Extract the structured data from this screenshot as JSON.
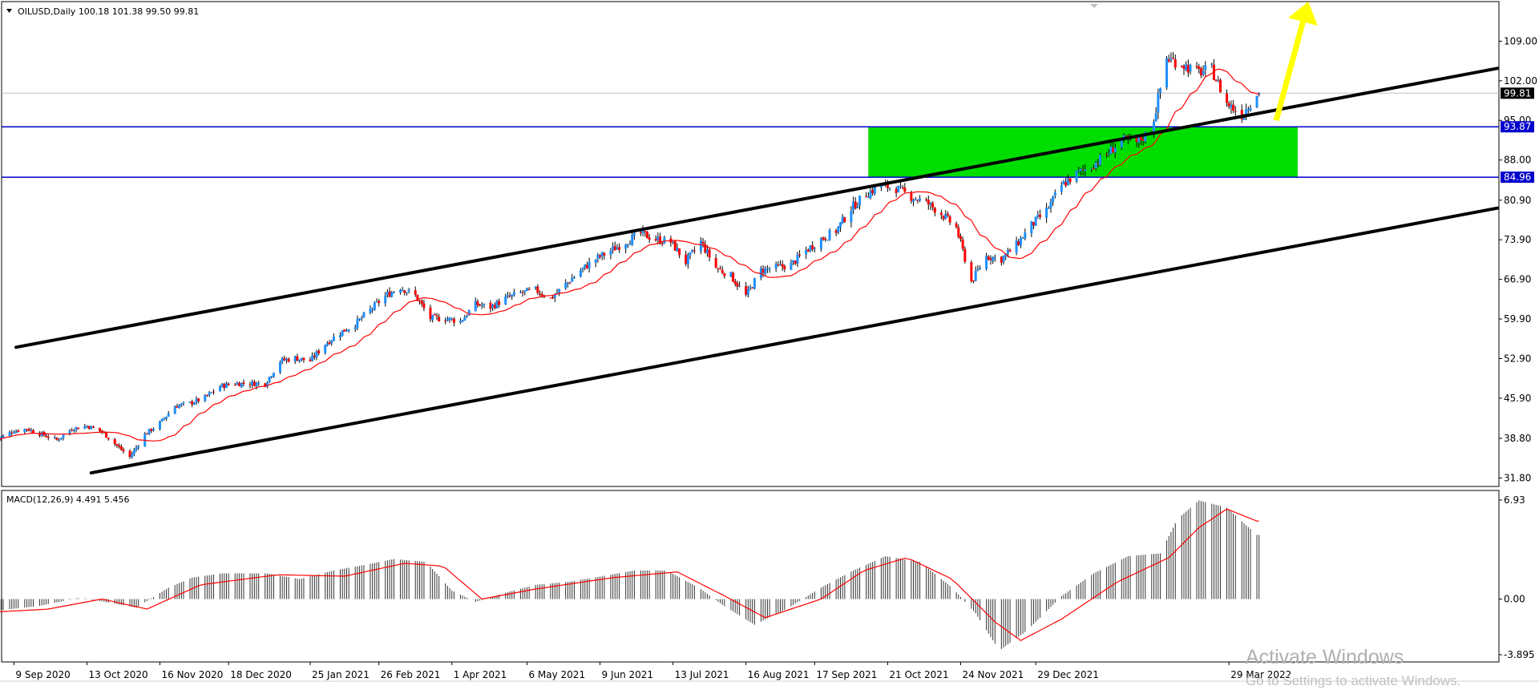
{
  "header": {
    "symbol_line": "OILUSD,Daily  100.18 101.38 99.50 99.81",
    "macd_line": "MACD(12,26,9) 4.491 5.456"
  },
  "watermark": {
    "title": "Activate Windows",
    "subtitle": "Go to Settings to activate Windows."
  },
  "chart_data": [
    {
      "type": "candlestick",
      "instrument": "OILUSD",
      "timeframe": "Daily",
      "last_ohlc": {
        "open": 100.18,
        "high": 101.38,
        "low": 99.5,
        "close": 99.81
      },
      "y_tick_labels": [
        "109.00",
        "102.00",
        "95.00",
        "88.00",
        "80.90",
        "73.90",
        "66.90",
        "59.90",
        "52.90",
        "45.90",
        "38.80",
        "31.80"
      ],
      "y_ticks": [
        109.0,
        102.0,
        95.0,
        88.0,
        80.9,
        73.9,
        66.9,
        59.9,
        52.9,
        45.9,
        38.8,
        31.8
      ],
      "ylim": [
        30.3,
        116.0
      ],
      "x_tick_labels": [
        "9 Sep 2020",
        "13 Oct 2020",
        "16 Nov 2020",
        "18 Dec 2020",
        "25 Jan 2021",
        "26 Feb 2021",
        "1 Apr 2021",
        "6 May 2021",
        "9 Jun 2021",
        "13 Jul 2021",
        "16 Aug 2021",
        "17 Sep 2021",
        "21 Oct 2021",
        "24 Nov 2021",
        "29 Dec 2021",
        "29 Mar 2022"
      ],
      "x_tick_dates": [
        "2020-09-09",
        "2020-10-13",
        "2020-11-16",
        "2020-12-18",
        "2021-01-25",
        "2021-02-26",
        "2021-04-01",
        "2021-05-06",
        "2021-06-09",
        "2021-07-13",
        "2021-08-16",
        "2021-09-17",
        "2021-10-21",
        "2021-11-24",
        "2021-12-29",
        "2022-03-29"
      ],
      "close_path": [
        [
          "2020-09-01",
          38.5
        ],
        [
          "2020-09-08",
          40.0
        ],
        [
          "2020-09-15",
          40.5
        ],
        [
          "2020-09-22",
          39.5
        ],
        [
          "2020-09-29",
          38.5
        ],
        [
          "2020-10-06",
          40.5
        ],
        [
          "2020-10-13",
          41.0
        ],
        [
          "2020-10-20",
          40.0
        ],
        [
          "2020-10-27",
          37.5
        ],
        [
          "2020-11-02",
          35.5
        ],
        [
          "2020-11-09",
          39.5
        ],
        [
          "2020-11-16",
          41.5
        ],
        [
          "2020-11-23",
          44.5
        ],
        [
          "2020-11-30",
          45.0
        ],
        [
          "2020-12-07",
          46.0
        ],
        [
          "2020-12-14",
          48.0
        ],
        [
          "2020-12-21",
          48.5
        ],
        [
          "2020-12-28",
          48.5
        ],
        [
          "2021-01-04",
          48.5
        ],
        [
          "2021-01-11",
          52.5
        ],
        [
          "2021-01-18",
          53.0
        ],
        [
          "2021-01-25",
          52.5
        ],
        [
          "2021-02-01",
          55.5
        ],
        [
          "2021-02-08",
          57.5
        ],
        [
          "2021-02-15",
          59.0
        ],
        [
          "2021-02-22",
          61.5
        ],
        [
          "2021-03-01",
          64.0
        ],
        [
          "2021-03-08",
          65.5
        ],
        [
          "2021-03-15",
          64.0
        ],
        [
          "2021-03-22",
          60.0
        ],
        [
          "2021-03-29",
          60.0
        ],
        [
          "2021-04-05",
          59.5
        ],
        [
          "2021-04-12",
          62.5
        ],
        [
          "2021-04-19",
          62.0
        ],
        [
          "2021-04-26",
          63.5
        ],
        [
          "2021-05-03",
          64.5
        ],
        [
          "2021-05-10",
          65.0
        ],
        [
          "2021-05-17",
          63.5
        ],
        [
          "2021-05-24",
          66.0
        ],
        [
          "2021-05-31",
          68.5
        ],
        [
          "2021-06-07",
          70.5
        ],
        [
          "2021-06-14",
          72.0
        ],
        [
          "2021-06-21",
          73.5
        ],
        [
          "2021-06-28",
          75.0
        ],
        [
          "2021-07-05",
          74.0
        ],
        [
          "2021-07-12",
          73.5
        ],
        [
          "2021-07-19",
          70.0
        ],
        [
          "2021-07-26",
          73.5
        ],
        [
          "2021-08-02",
          69.0
        ],
        [
          "2021-08-09",
          67.5
        ],
        [
          "2021-08-16",
          64.0
        ],
        [
          "2021-08-23",
          68.5
        ],
        [
          "2021-08-30",
          69.0
        ],
        [
          "2021-09-06",
          69.5
        ],
        [
          "2021-09-13",
          72.0
        ],
        [
          "2021-09-20",
          74.0
        ],
        [
          "2021-09-27",
          75.5
        ],
        [
          "2021-10-04",
          79.5
        ],
        [
          "2021-10-11",
          82.0
        ],
        [
          "2021-10-18",
          83.5
        ],
        [
          "2021-10-25",
          83.0
        ],
        [
          "2021-11-01",
          81.5
        ],
        [
          "2021-11-08",
          80.5
        ],
        [
          "2021-11-15",
          78.5
        ],
        [
          "2021-11-22",
          76.0
        ],
        [
          "2021-11-29",
          66.5
        ],
        [
          "2021-12-06",
          71.0
        ],
        [
          "2021-12-13",
          70.5
        ],
        [
          "2021-12-20",
          73.0
        ],
        [
          "2021-12-27",
          76.5
        ],
        [
          "2022-01-03",
          79.0
        ],
        [
          "2022-01-10",
          83.5
        ],
        [
          "2022-01-17",
          85.5
        ],
        [
          "2022-01-24",
          87.0
        ],
        [
          "2022-01-31",
          89.0
        ],
        [
          "2022-02-07",
          91.5
        ],
        [
          "2022-02-14",
          91.0
        ],
        [
          "2022-02-21",
          93.5
        ],
        [
          "2022-02-28",
          106.0
        ],
        [
          "2022-03-07",
          105.0
        ],
        [
          "2022-03-14",
          103.5
        ],
        [
          "2022-03-21",
          104.0
        ],
        [
          "2022-03-28",
          98.0
        ],
        [
          "2022-04-04",
          96.0
        ],
        [
          "2022-04-11",
          99.81
        ]
      ],
      "indicator": {
        "name": "moving average",
        "color": "#ff0000"
      },
      "price_labels": [
        {
          "label": "99.81",
          "value": 99.81,
          "kind": "current price",
          "bg": "#000000"
        },
        {
          "label": "93.87",
          "value": 93.87,
          "kind": "horizontal line",
          "bg": "#0000cc"
        },
        {
          "label": "84.96",
          "value": 84.96,
          "kind": "horizontal line",
          "bg": "#0000cc"
        }
      ],
      "horizontal_lines": [
        93.87,
        84.96
      ],
      "trend_channel": {
        "upper": [
          [
            "2020-09-10",
            54.9
          ],
          [
            "2022-08-01",
            104.2
          ]
        ],
        "lower": [
          [
            "2020-10-15",
            32.7
          ],
          [
            "2022-08-01",
            79.5
          ]
        ]
      },
      "zone": {
        "from": "2021-10-12",
        "to": "2022-04-30",
        "low": 84.96,
        "high": 93.87,
        "color": "#00dd00"
      },
      "arrow": {
        "from": [
          "2022-04-20",
          95.0
        ],
        "to": [
          "2022-05-05",
          116.0
        ],
        "color": "#ffff00"
      },
      "colors": {
        "up": "#1e90ff",
        "down": "#ff0000",
        "wick": "#000000",
        "trendline": "#000000"
      }
    },
    {
      "type": "histogram",
      "name": "MACD(12,26,9)",
      "main": 4.491,
      "signal": 5.456,
      "y_tick_labels": [
        "6.93",
        "0.00",
        "-3.895"
      ],
      "y_ticks": [
        6.93,
        0.0,
        -3.895
      ],
      "ylim": [
        -4.4,
        7.6
      ],
      "macd_path": [
        [
          "2020-09-01",
          -0.8
        ],
        [
          "2020-09-20",
          -0.5
        ],
        [
          "2020-10-10",
          0.1
        ],
        [
          "2020-10-25",
          -0.3
        ],
        [
          "2020-11-05",
          -0.6
        ],
        [
          "2020-11-20",
          0.8
        ],
        [
          "2020-12-01",
          1.5
        ],
        [
          "2020-12-15",
          1.8
        ],
        [
          "2021-01-05",
          1.8
        ],
        [
          "2021-01-20",
          1.4
        ],
        [
          "2021-02-05",
          2.0
        ],
        [
          "2021-02-20",
          2.4
        ],
        [
          "2021-03-05",
          2.8
        ],
        [
          "2021-03-20",
          2.6
        ],
        [
          "2021-04-01",
          0.6
        ],
        [
          "2021-04-12",
          -0.2
        ],
        [
          "2021-04-25",
          0.4
        ],
        [
          "2021-05-10",
          1.0
        ],
        [
          "2021-05-25",
          1.2
        ],
        [
          "2021-06-10",
          1.6
        ],
        [
          "2021-06-25",
          2.0
        ],
        [
          "2021-07-10",
          2.0
        ],
        [
          "2021-07-25",
          0.8
        ],
        [
          "2021-08-05",
          -0.4
        ],
        [
          "2021-08-20",
          -1.8
        ],
        [
          "2021-09-05",
          -0.6
        ],
        [
          "2021-09-20",
          0.8
        ],
        [
          "2021-10-05",
          2.0
        ],
        [
          "2021-10-20",
          3.0
        ],
        [
          "2021-11-05",
          2.6
        ],
        [
          "2021-11-20",
          0.8
        ],
        [
          "2021-12-01",
          -1.0
        ],
        [
          "2021-12-12",
          -3.6
        ],
        [
          "2021-12-25",
          -2.2
        ],
        [
          "2022-01-10",
          0.2
        ],
        [
          "2022-01-25",
          1.8
        ],
        [
          "2022-02-10",
          3.0
        ],
        [
          "2022-02-25",
          3.2
        ],
        [
          "2022-03-05",
          5.6
        ],
        [
          "2022-03-15",
          6.9
        ],
        [
          "2022-03-28",
          6.4
        ],
        [
          "2022-04-11",
          4.491
        ]
      ],
      "signal_path": [
        [
          "2020-09-01",
          -0.9
        ],
        [
          "2020-09-25",
          -0.7
        ],
        [
          "2020-10-20",
          0.0
        ],
        [
          "2020-11-10",
          -0.7
        ],
        [
          "2020-12-05",
          1.0
        ],
        [
          "2021-01-10",
          1.7
        ],
        [
          "2021-02-10",
          1.6
        ],
        [
          "2021-03-10",
          2.5
        ],
        [
          "2021-03-28",
          2.3
        ],
        [
          "2021-04-15",
          0.0
        ],
        [
          "2021-05-10",
          0.7
        ],
        [
          "2021-06-15",
          1.5
        ],
        [
          "2021-07-15",
          1.9
        ],
        [
          "2021-08-05",
          0.3
        ],
        [
          "2021-08-25",
          -1.3
        ],
        [
          "2021-09-20",
          0.0
        ],
        [
          "2021-10-10",
          2.0
        ],
        [
          "2021-10-30",
          2.9
        ],
        [
          "2021-11-20",
          1.4
        ],
        [
          "2021-12-10",
          -1.6
        ],
        [
          "2021-12-22",
          -2.9
        ],
        [
          "2022-01-10",
          -1.4
        ],
        [
          "2022-02-05",
          1.2
        ],
        [
          "2022-03-01",
          2.9
        ],
        [
          "2022-03-15",
          5.0
        ],
        [
          "2022-03-28",
          6.3
        ],
        [
          "2022-04-11",
          5.456
        ]
      ],
      "colors": {
        "histogram": "#333333",
        "signal": "#ff0000"
      }
    }
  ]
}
